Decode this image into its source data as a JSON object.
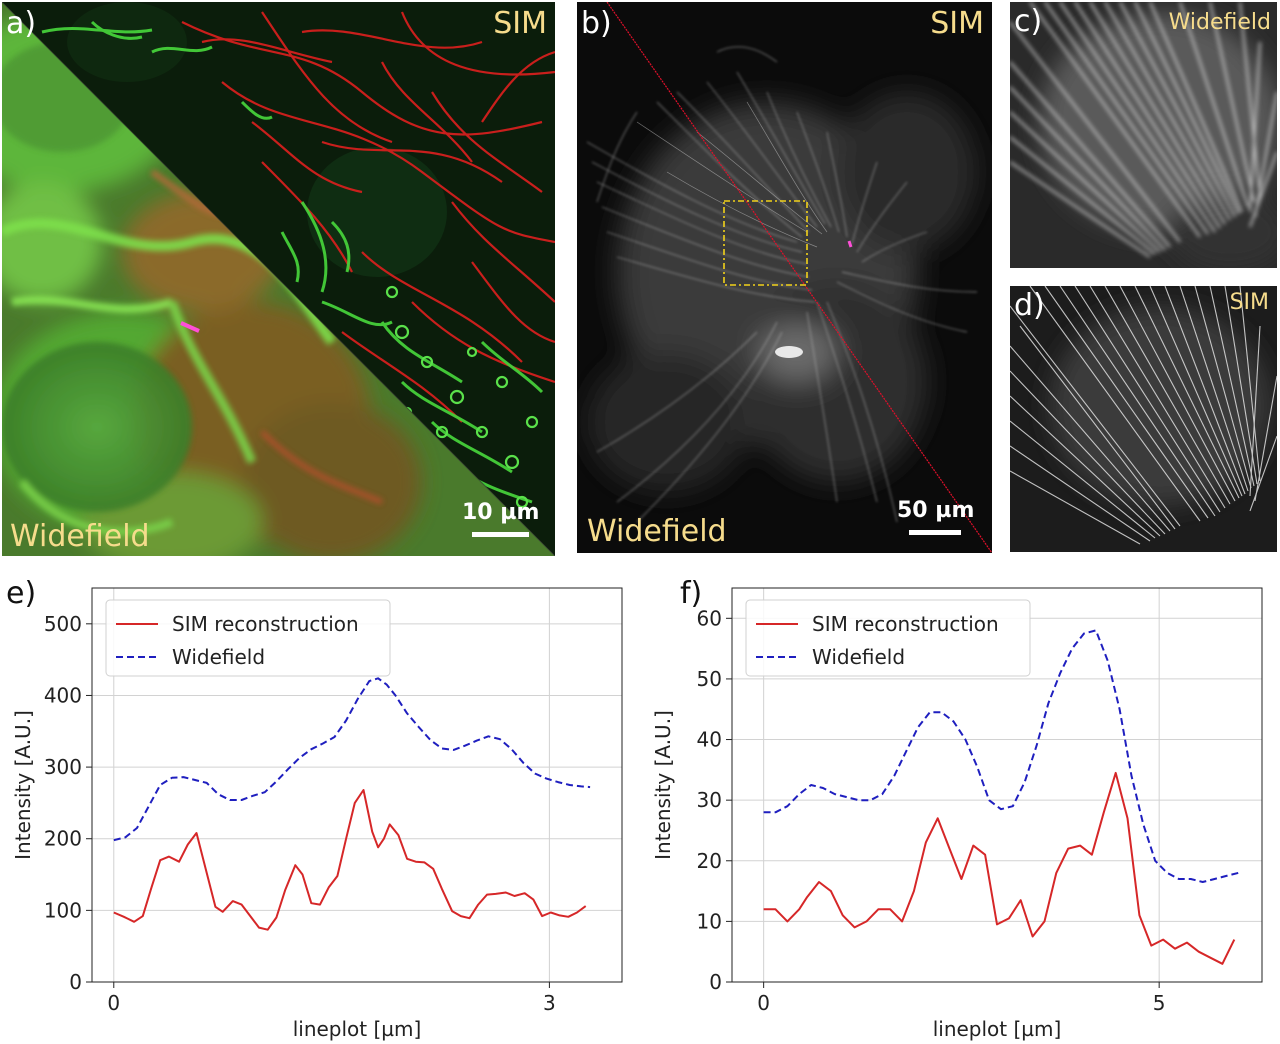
{
  "figure": {
    "a": {
      "label": "a)",
      "sim_label": "SIM",
      "widefield_label": "Widefield",
      "scalebar_label": "10 µm"
    },
    "b": {
      "label": "b)",
      "sim_label": "SIM",
      "widefield_label": "Widefield",
      "scalebar_label": "50 µm"
    },
    "c": {
      "label": "c)",
      "caption": "Widefield"
    },
    "d": {
      "label": "d)",
      "caption": "SIM"
    },
    "e": {
      "label": "e)"
    },
    "f": {
      "label": "f)"
    }
  },
  "colors": {
    "sim_series": "#d62728",
    "widefield_series": "#1f1fbf",
    "overlay_text": "#f6dc8c",
    "lineplot_marker": "#ff4fd8",
    "box_marker": "#f2d21a",
    "divider_line": "#e0102a"
  },
  "chart_data": [
    {
      "type": "line",
      "panel": "e",
      "title": "",
      "xlabel": "lineplot [µm]",
      "ylabel": "Intensity [A.U.]",
      "xlim": [
        -0.15,
        3.5
      ],
      "ylim": [
        0,
        550
      ],
      "xticks": [
        0,
        3
      ],
      "yticks": [
        0,
        100,
        200,
        300,
        400,
        500
      ],
      "grid": true,
      "legend": "top-left",
      "series": [
        {
          "name": "SIM reconstruction",
          "style": "solid",
          "x": [
            0,
            0.07,
            0.14,
            0.2,
            0.26,
            0.32,
            0.38,
            0.45,
            0.51,
            0.57,
            0.63,
            0.7,
            0.75,
            0.82,
            0.88,
            0.94,
            1.0,
            1.06,
            1.12,
            1.18,
            1.25,
            1.3,
            1.36,
            1.42,
            1.48,
            1.54,
            1.6,
            1.66,
            1.72,
            1.78,
            1.82,
            1.86,
            1.9,
            1.96,
            2.02,
            2.08,
            2.14,
            2.2,
            2.26,
            2.33,
            2.39,
            2.45,
            2.51,
            2.57,
            2.63,
            2.7,
            2.76,
            2.83,
            2.89,
            2.95,
            3.01,
            3.07,
            3.13,
            3.19,
            3.25
          ],
          "values": [
            97,
            91,
            84,
            92,
            132,
            170,
            175,
            168,
            192,
            208,
            160,
            105,
            98,
            113,
            108,
            92,
            76,
            73,
            90,
            128,
            163,
            150,
            110,
            108,
            132,
            148,
            200,
            250,
            268,
            210,
            188,
            200,
            220,
            205,
            172,
            168,
            167,
            158,
            130,
            99,
            92,
            89,
            108,
            122,
            123,
            125,
            120,
            124,
            115,
            92,
            97,
            93,
            91,
            97,
            106
          ]
        },
        {
          "name": "Widefield",
          "style": "dashed",
          "x": [
            0,
            0.08,
            0.16,
            0.24,
            0.32,
            0.4,
            0.48,
            0.56,
            0.64,
            0.72,
            0.8,
            0.88,
            0.96,
            1.04,
            1.12,
            1.2,
            1.28,
            1.36,
            1.44,
            1.52,
            1.6,
            1.68,
            1.76,
            1.82,
            1.88,
            1.94,
            2.02,
            2.1,
            2.18,
            2.26,
            2.34,
            2.42,
            2.5,
            2.58,
            2.66,
            2.74,
            2.82,
            2.9,
            2.98,
            3.06,
            3.14,
            3.22,
            3.28
          ],
          "values": [
            198,
            202,
            215,
            245,
            275,
            285,
            286,
            282,
            278,
            262,
            254,
            254,
            260,
            265,
            280,
            297,
            313,
            325,
            333,
            342,
            365,
            395,
            420,
            424,
            415,
            400,
            375,
            356,
            338,
            326,
            324,
            330,
            337,
            343,
            339,
            325,
            306,
            291,
            284,
            279,
            275,
            273,
            272
          ]
        }
      ]
    },
    {
      "type": "line",
      "panel": "f",
      "title": "",
      "xlabel": "lineplot [µm]",
      "ylabel": "Intensity [A.U.]",
      "xlim": [
        -0.4,
        6.3
      ],
      "ylim": [
        0,
        65
      ],
      "xticks": [
        0,
        5
      ],
      "yticks": [
        0,
        10,
        20,
        30,
        40,
        50,
        60
      ],
      "grid": true,
      "legend": "top-left",
      "series": [
        {
          "name": "SIM reconstruction",
          "style": "solid",
          "x": [
            0,
            0.15,
            0.3,
            0.45,
            0.55,
            0.7,
            0.85,
            1.0,
            1.15,
            1.3,
            1.45,
            1.6,
            1.75,
            1.9,
            2.05,
            2.2,
            2.35,
            2.5,
            2.65,
            2.8,
            2.95,
            3.1,
            3.25,
            3.4,
            3.55,
            3.7,
            3.85,
            4.0,
            4.15,
            4.3,
            4.45,
            4.6,
            4.75,
            4.9,
            5.05,
            5.2,
            5.35,
            5.5,
            5.65,
            5.8,
            5.95
          ],
          "values": [
            12,
            12,
            10,
            12,
            14,
            16.5,
            15,
            11,
            9,
            10,
            12,
            12,
            10,
            15,
            23,
            27,
            22,
            17,
            22.5,
            21,
            9.5,
            10.5,
            13.5,
            7.5,
            10,
            18,
            22,
            22.5,
            21,
            28,
            34.5,
            27,
            11,
            6,
            7,
            5.5,
            6.5,
            5,
            4,
            3,
            7
          ]
        },
        {
          "name": "Widefield",
          "style": "dashed",
          "x": [
            0,
            0.15,
            0.3,
            0.45,
            0.6,
            0.75,
            0.9,
            1.05,
            1.2,
            1.35,
            1.5,
            1.65,
            1.8,
            1.95,
            2.1,
            2.25,
            2.4,
            2.55,
            2.7,
            2.85,
            3.0,
            3.15,
            3.3,
            3.45,
            3.6,
            3.75,
            3.9,
            4.05,
            4.2,
            4.35,
            4.5,
            4.65,
            4.8,
            4.95,
            5.1,
            5.25,
            5.4,
            5.55,
            5.7,
            5.85,
            6.0
          ],
          "values": [
            28,
            28,
            29,
            31,
            32.5,
            32,
            31,
            30.5,
            30,
            30,
            31,
            34,
            38,
            42,
            44.5,
            44.5,
            43,
            40,
            35.5,
            30,
            28.5,
            29,
            33,
            39,
            46,
            51,
            55,
            57.5,
            58,
            53,
            45,
            34,
            26,
            20,
            18,
            17,
            17,
            16.5,
            17,
            17.5,
            18
          ]
        }
      ]
    }
  ]
}
